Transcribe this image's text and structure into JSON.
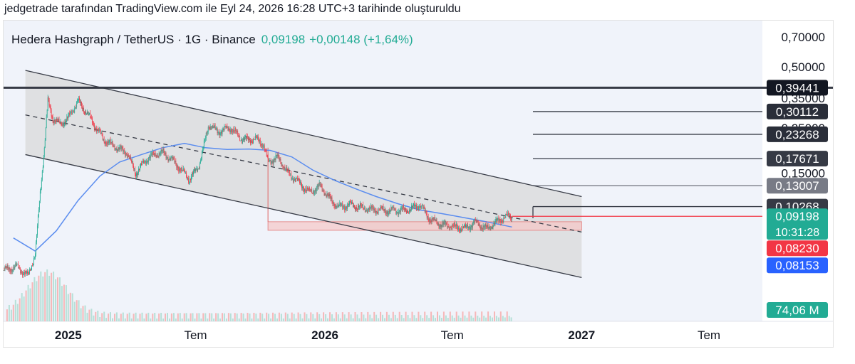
{
  "credit": "jedgetrade tarafından TradingView.com ile Eyl 24, 2026 16:28 UTC+3 tarihinde oluşturuldu",
  "legend": {
    "symbol": "Hedera Hashgraph / TetherUS · 1G · Binance",
    "price": "0,09198",
    "change": "+0,00148 (+1,64%)"
  },
  "colors": {
    "up": "#22ab94",
    "down": "#f23645",
    "ma": "#5b8def",
    "channel_line": "#363a45",
    "channel_fill": "#d9d9d9",
    "zone": "#f5c6c6"
  },
  "chart_data": {
    "type": "candlestick",
    "scale": "log",
    "x_labels": [
      "2025",
      "Tem",
      "2026",
      "Tem",
      "2027",
      "Tem"
    ],
    "x_label_dates": [
      "2025-01-01",
      "2025-07-01",
      "2026-01-01",
      "2026-07-01",
      "2027-01-01",
      "2027-07-01"
    ],
    "x_range": [
      "2024-10-01",
      "2027-09-15"
    ],
    "y_ticks": [
      "0,70000",
      "0,50000",
      "0,35000",
      "0,25000",
      "0,15000"
    ],
    "y_tick_values": [
      0.7,
      0.5,
      0.35,
      0.25,
      0.15
    ],
    "y_range": [
      0.028,
      0.85
    ],
    "price_path": [
      [
        "2024-10-01",
        0.05
      ],
      [
        "2024-10-20",
        0.052
      ],
      [
        "2024-11-05",
        0.047
      ],
      [
        "2024-11-15",
        0.06
      ],
      [
        "2024-11-22",
        0.12
      ],
      [
        "2024-11-28",
        0.2
      ],
      [
        "2024-12-03",
        0.34
      ],
      [
        "2024-12-10",
        0.28
      ],
      [
        "2024-12-20",
        0.26
      ],
      [
        "2025-01-01",
        0.28
      ],
      [
        "2025-01-15",
        0.34
      ],
      [
        "2025-02-01",
        0.28
      ],
      [
        "2025-02-20",
        0.22
      ],
      [
        "2025-03-10",
        0.2
      ],
      [
        "2025-03-25",
        0.19
      ],
      [
        "2025-04-07",
        0.15
      ],
      [
        "2025-04-25",
        0.18
      ],
      [
        "2025-05-15",
        0.19
      ],
      [
        "2025-06-01",
        0.17
      ],
      [
        "2025-06-22",
        0.14
      ],
      [
        "2025-07-05",
        0.16
      ],
      [
        "2025-07-20",
        0.26
      ],
      [
        "2025-08-01",
        0.24
      ],
      [
        "2025-08-20",
        0.25
      ],
      [
        "2025-09-05",
        0.22
      ],
      [
        "2025-09-25",
        0.22
      ],
      [
        "2025-10-05",
        0.21
      ],
      [
        "2025-10-12",
        0.17
      ],
      [
        "2025-10-25",
        0.18
      ],
      [
        "2025-11-10",
        0.15
      ],
      [
        "2025-11-25",
        0.135
      ],
      [
        "2025-12-10",
        0.12
      ],
      [
        "2025-12-25",
        0.13
      ],
      [
        "2026-01-10",
        0.11
      ],
      [
        "2026-01-20",
        0.102
      ],
      [
        "2026-02-05",
        0.105
      ],
      [
        "2026-03-01",
        0.1
      ],
      [
        "2026-04-01",
        0.098
      ],
      [
        "2026-05-01",
        0.099
      ],
      [
        "2026-05-15",
        0.105
      ],
      [
        "2026-06-01",
        0.088
      ],
      [
        "2026-06-15",
        0.084
      ],
      [
        "2026-07-01",
        0.082
      ],
      [
        "2026-07-20",
        0.08
      ],
      [
        "2026-08-01",
        0.086
      ],
      [
        "2026-08-20",
        0.08
      ],
      [
        "2026-09-05",
        0.088
      ],
      [
        "2026-09-18",
        0.092
      ],
      [
        "2026-09-24",
        0.09198
      ]
    ],
    "moving_average": [
      [
        "2024-10-15",
        0.072
      ],
      [
        "2024-11-15",
        0.062
      ],
      [
        "2024-12-15",
        0.078
      ],
      [
        "2025-01-15",
        0.11
      ],
      [
        "2025-02-15",
        0.145
      ],
      [
        "2025-03-15",
        0.17
      ],
      [
        "2025-04-15",
        0.185
      ],
      [
        "2025-05-15",
        0.2
      ],
      [
        "2025-06-15",
        0.21
      ],
      [
        "2025-07-15",
        0.2
      ],
      [
        "2025-08-15",
        0.196
      ],
      [
        "2025-09-15",
        0.197
      ],
      [
        "2025-10-15",
        0.194
      ],
      [
        "2025-11-15",
        0.18
      ],
      [
        "2025-12-15",
        0.155
      ],
      [
        "2026-01-15",
        0.138
      ],
      [
        "2026-02-15",
        0.125
      ],
      [
        "2026-03-15",
        0.115
      ],
      [
        "2026-04-15",
        0.106
      ],
      [
        "2026-05-15",
        0.099
      ],
      [
        "2026-06-15",
        0.095
      ],
      [
        "2026-07-15",
        0.091
      ],
      [
        "2026-08-15",
        0.087
      ],
      [
        "2026-09-24",
        0.0815
      ]
    ],
    "channel": {
      "upper": [
        [
          "2024-11-01",
          0.48
        ],
        [
          "2027-01-01",
          0.115
        ]
      ],
      "middle": [
        [
          "2024-11-01",
          0.29
        ],
        [
          "2027-01-01",
          0.077
        ]
      ],
      "lower": [
        [
          "2024-11-01",
          0.185
        ],
        [
          "2027-01-01",
          0.046
        ]
      ]
    },
    "horizontal_level": 0.39441,
    "target_levels": [
      0.30112,
      0.23268,
      0.17671,
      0.13007,
      0.10268
    ],
    "support_zone": {
      "top": 0.0865,
      "bottom": 0.0785,
      "start": "2025-10-12"
    },
    "price_line": 0.09198,
    "price_labels": [
      {
        "text": "0,39441",
        "value": 0.39441,
        "bg": "#131722",
        "fg": "#ffffff"
      },
      {
        "text": "0,30112",
        "value": 0.30112,
        "bg": "#2a2e39",
        "fg": "#ffffff"
      },
      {
        "text": "0,23268",
        "value": 0.23268,
        "bg": "#2a2e39",
        "fg": "#ffffff"
      },
      {
        "text": "0,17671",
        "value": 0.17671,
        "bg": "#363a45",
        "fg": "#ffffff"
      },
      {
        "text": "0,13007",
        "value": 0.13007,
        "bg": "#787b86",
        "fg": "#ffffff"
      },
      {
        "text": "0,10268",
        "value": 0.10268,
        "bg": "#363a45",
        "fg": "#ffffff"
      }
    ],
    "last_price_label": {
      "text": "0,09198",
      "countdown": "10:31:28",
      "bg": "#22ab94",
      "fg": "#ffffff"
    },
    "red_label": {
      "text": "0,08230",
      "bg": "#f23645",
      "fg": "#ffffff"
    },
    "ma_label": {
      "text": "0,08153",
      "bg": "#2962ff",
      "fg": "#ffffff"
    },
    "volume_label": {
      "text": "74,06 M",
      "bg": "#22ab94",
      "fg": "#ffffff"
    }
  }
}
